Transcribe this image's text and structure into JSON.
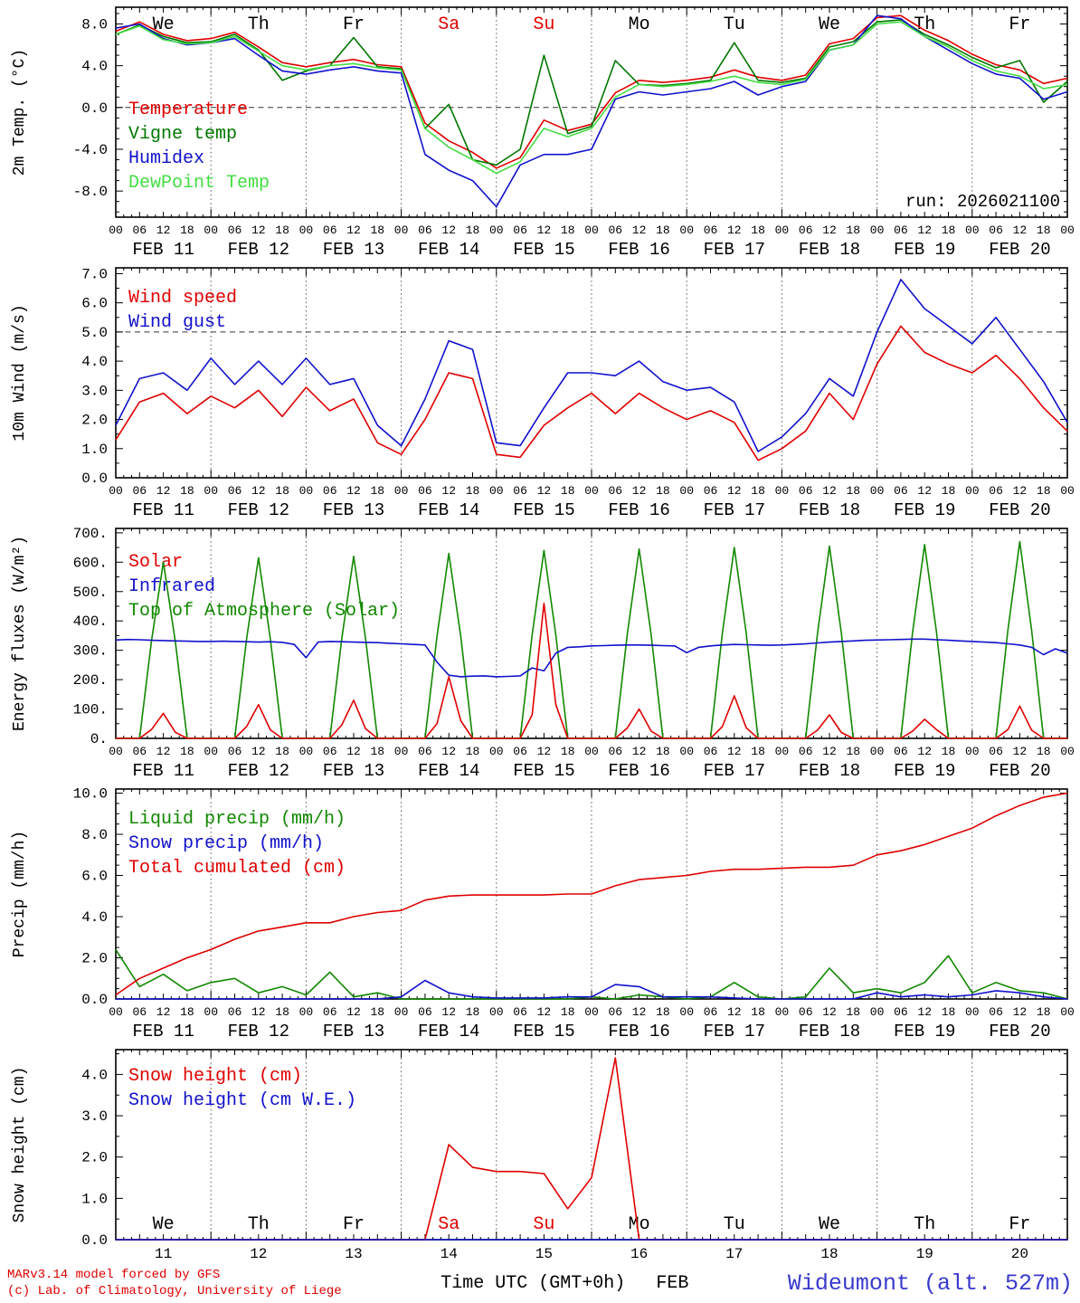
{
  "footer": {
    "credit_line1": "MARv3.14 model forced by GFS",
    "credit_line2": "(c) Lab. of Climatology, University of Liege",
    "xlabel": "Time UTC (GMT+0h)",
    "month": "FEB",
    "station": "Wideumont (alt. 527m)"
  },
  "chart_data": {
    "type": "line",
    "hours_total": 240,
    "dates": [
      "FEB 11",
      "FEB 12",
      "FEB 13",
      "FEB 14",
      "FEB 15",
      "FEB 16",
      "FEB 17",
      "FEB 18",
      "FEB 19",
      "FEB 20"
    ],
    "day_numbers": [
      "11",
      "12",
      "13",
      "14",
      "15",
      "16",
      "17",
      "18",
      "19",
      "20"
    ],
    "day_abbrevs": [
      "We",
      "Th",
      "Fr",
      "Sa",
      "Su",
      "Mo",
      "Tu",
      "We",
      "Th",
      "Fr"
    ],
    "weekend_indices": [
      3,
      4
    ],
    "run_label": "run: 2026021100",
    "panels": [
      {
        "id": "temp",
        "ylabel": "2m Temp. (°C)",
        "ylim": [
          -10.5,
          9.6
        ],
        "yticks": [
          8,
          4,
          0,
          -4,
          -8
        ],
        "ytick_labels": [
          "8.0",
          "4.0",
          "0.0",
          "-4.0",
          "-8.0"
        ],
        "yminor": 1,
        "dash_y": 0,
        "x_mode": "hours",
        "day_labels": "top",
        "note": "run: 2026021100",
        "legend_y": 118,
        "legend": [
          {
            "label": "Temperature",
            "color": "#e00000"
          },
          {
            "label": "Vigne temp",
            "color": "#007700"
          },
          {
            "label": "Humidex",
            "color": "#1111cc"
          },
          {
            "label": "DewPoint Temp",
            "color": "#44dd44"
          }
        ],
        "series": [
          {
            "name": "Temperature",
            "color": "#e00000",
            "step": 6,
            "values": [
              7.3,
              8.2,
              7.0,
              6.4,
              6.6,
              7.2,
              5.8,
              4.3,
              3.9,
              4.3,
              4.6,
              4.1,
              3.9,
              -1.5,
              -3.2,
              -4.3,
              -5.8,
              -4.8,
              -1.2,
              -2.2,
              -1.6,
              1.4,
              2.6,
              2.4,
              2.6,
              2.9,
              3.6,
              2.9,
              2.6,
              3.1,
              6.1,
              6.6,
              8.6,
              8.8,
              7.4,
              6.4,
              5.1,
              4.1,
              3.6,
              2.3,
              2.8
            ]
          },
          {
            "name": "Vigne temp",
            "color": "#007700",
            "step": 6,
            "values": [
              7.0,
              7.9,
              6.8,
              6.2,
              6.3,
              7.0,
              5.5,
              2.6,
              3.5,
              4.0,
              6.7,
              3.9,
              3.7,
              -2.0,
              0.3,
              -5.0,
              -5.5,
              -4.0,
              5.0,
              -2.5,
              -1.8,
              4.5,
              2.2,
              2.1,
              2.3,
              2.6,
              6.2,
              2.6,
              2.4,
              2.8,
              5.8,
              6.3,
              8.2,
              8.4,
              7.0,
              6.0,
              4.8,
              3.8,
              4.5,
              0.5,
              2.5
            ]
          },
          {
            "name": "Humidex",
            "color": "#1111cc",
            "step": 6,
            "values": [
              7.6,
              8.0,
              6.6,
              6.0,
              6.2,
              6.6,
              5.0,
              3.5,
              3.2,
              3.6,
              3.9,
              3.5,
              3.3,
              -4.5,
              -6.0,
              -7.0,
              -9.5,
              -5.5,
              -4.5,
              -4.5,
              -4.0,
              0.8,
              1.5,
              1.2,
              1.5,
              1.8,
              2.5,
              1.2,
              2.0,
              2.5,
              5.5,
              6.0,
              8.8,
              8.5,
              6.8,
              5.5,
              4.2,
              3.2,
              2.8,
              0.8,
              1.5
            ]
          },
          {
            "name": "DewPoint Temp",
            "color": "#44dd44",
            "step": 6,
            "values": [
              7.0,
              7.8,
              6.5,
              6.1,
              6.2,
              6.8,
              5.4,
              4.0,
              3.6,
              4.0,
              4.2,
              3.8,
              3.6,
              -2.0,
              -3.8,
              -5.0,
              -6.3,
              -5.2,
              -2.0,
              -2.8,
              -2.0,
              1.0,
              2.2,
              2.0,
              2.2,
              2.5,
              3.0,
              2.4,
              2.2,
              2.7,
              5.5,
              6.0,
              8.0,
              8.2,
              6.8,
              5.8,
              4.5,
              3.5,
              3.0,
              1.8,
              2.2
            ]
          }
        ]
      },
      {
        "id": "wind",
        "ylabel": "10m Wind (m/s)",
        "ylim": [
          0,
          7.2
        ],
        "yticks": [
          7,
          6,
          5,
          4,
          3,
          2,
          1,
          0
        ],
        "ytick_labels": [
          "7.0",
          "6.0",
          "5.0",
          "4.0",
          "3.0",
          "2.0",
          "1.0",
          "0.0"
        ],
        "yminor": 0.5,
        "dash_y": 5,
        "x_mode": "hours",
        "legend_y": 38,
        "legend": [
          {
            "label": "Wind speed",
            "color": "#e00000"
          },
          {
            "label": "Wind gust",
            "color": "#1111cc"
          }
        ],
        "series": [
          {
            "name": "Wind speed",
            "color": "#e00000",
            "step": 6,
            "values": [
              1.3,
              2.6,
              2.9,
              2.2,
              2.8,
              2.4,
              3.0,
              2.1,
              3.1,
              2.3,
              2.7,
              1.2,
              0.8,
              2.0,
              3.6,
              3.4,
              0.8,
              0.7,
              1.8,
              2.4,
              2.9,
              2.2,
              2.9,
              2.4,
              2.0,
              2.3,
              1.9,
              0.6,
              1.0,
              1.6,
              2.9,
              2.0,
              3.9,
              5.2,
              4.3,
              3.9,
              3.6,
              4.2,
              3.4,
              2.4,
              1.6
            ]
          },
          {
            "name": "Wind gust",
            "color": "#1111cc",
            "step": 6,
            "values": [
              1.8,
              3.4,
              3.6,
              3.0,
              4.1,
              3.2,
              4.0,
              3.2,
              4.1,
              3.2,
              3.4,
              1.8,
              1.1,
              2.7,
              4.7,
              4.4,
              1.2,
              1.1,
              2.4,
              3.6,
              3.6,
              3.5,
              4.0,
              3.3,
              3.0,
              3.1,
              2.6,
              0.9,
              1.4,
              2.2,
              3.4,
              2.8,
              5.0,
              6.8,
              5.8,
              5.2,
              4.6,
              5.5,
              4.4,
              3.3,
              1.9
            ]
          }
        ]
      },
      {
        "id": "flux",
        "ylabel": "Energy fluxes (W/m²)",
        "ylim": [
          0,
          715
        ],
        "yticks": [
          700,
          600,
          500,
          400,
          300,
          200,
          100,
          0
        ],
        "ytick_labels": [
          "700.",
          "600.",
          "500.",
          "400.",
          "300.",
          "200.",
          "100.",
          "0."
        ],
        "yminor": 50,
        "x_mode": "hours",
        "legend_y": 42,
        "legend": [
          {
            "label": "Solar",
            "color": "#e00000"
          },
          {
            "label": "Infrared",
            "color": "#1111cc"
          },
          {
            "label": "Top of Atmosphere (Solar)",
            "color": "#118800"
          }
        ],
        "series": [
          {
            "name": "Top of Atmosphere (Solar)",
            "color": "#118800",
            "step": 3,
            "values": [
              0,
              0,
              0,
              330,
              600,
              330,
              0,
              0,
              0,
              0,
              0,
              338,
              615,
              338,
              0,
              0,
              0,
              0,
              0,
              341,
              620,
              341,
              0,
              0,
              0,
              0,
              0,
              347,
              630,
              347,
              0,
              0,
              0,
              0,
              0,
              352,
              640,
              352,
              0,
              0,
              0,
              0,
              0,
              355,
              645,
              355,
              0,
              0,
              0,
              0,
              0,
              358,
              650,
              358,
              0,
              0,
              0,
              0,
              0,
              360,
              655,
              360,
              0,
              0,
              0,
              0,
              0,
              363,
              660,
              363,
              0,
              0,
              0,
              0,
              0,
              369,
              670,
              369,
              0,
              0,
              0
            ]
          },
          {
            "name": "Infrared",
            "color": "#1111cc",
            "step": 3,
            "values": [
              335,
              337,
              336,
              334,
              333,
              332,
              331,
              330,
              330,
              331,
              330,
              329,
              328,
              329,
              327,
              320,
              275,
              328,
              330,
              329,
              328,
              327,
              326,
              324,
              322,
              320,
              318,
              260,
              215,
              210,
              212,
              213,
              210,
              211,
              213,
              240,
              230,
              290,
              310,
              312,
              315,
              316,
              317,
              318,
              318,
              317,
              316,
              315,
              292,
              310,
              315,
              318,
              320,
              319,
              318,
              317,
              318,
              320,
              322,
              325,
              328,
              330,
              332,
              334,
              335,
              336,
              337,
              338,
              338,
              336,
              334,
              332,
              330,
              328,
              326,
              322,
              318,
              310,
              285,
              305,
              290
            ]
          },
          {
            "name": "Solar",
            "color": "#e00000",
            "step": 3,
            "values": [
              0,
              0,
              0,
              30,
              85,
              21,
              0,
              0,
              0,
              0,
              0,
              40,
              115,
              29,
              0,
              0,
              0,
              0,
              0,
              46,
              130,
              33,
              0,
              0,
              0,
              0,
              0,
              50,
              210,
              60,
              0,
              0,
              0,
              0,
              0,
              80,
              460,
              115,
              0,
              0,
              0,
              0,
              0,
              35,
              100,
              25,
              0,
              0,
              0,
              0,
              0,
              40,
              145,
              36,
              0,
              0,
              0,
              0,
              0,
              28,
              80,
              20,
              0,
              0,
              0,
              0,
              0,
              25,
              65,
              30,
              0,
              0,
              0,
              0,
              0,
              30,
              110,
              28,
              0,
              0,
              0
            ]
          }
        ]
      },
      {
        "id": "precip",
        "ylabel": "Precip (mm/h)",
        "ylim": [
          0,
          10.2
        ],
        "yticks": [
          10,
          8,
          6,
          4,
          2,
          0
        ],
        "ytick_labels": [
          "10.0",
          "8.0",
          "6.0",
          "4.0",
          "2.0",
          "0.0"
        ],
        "yminor": 0.5,
        "x_mode": "hours",
        "legend_y": 38,
        "legend": [
          {
            "label": "Liquid precip (mm/h)",
            "color": "#118800"
          },
          {
            "label": "Snow precip (mm/h)",
            "color": "#1111cc"
          },
          {
            "label": "Total cumulated (cm)",
            "color": "#e00000"
          }
        ],
        "series": [
          {
            "name": "Liquid precip (mm/h)",
            "color": "#118800",
            "step": 6,
            "values": [
              2.4,
              0.6,
              1.2,
              0.4,
              0.8,
              1.0,
              0.3,
              0.6,
              0.2,
              1.3,
              0.1,
              0.3,
              0.0,
              0.0,
              0.0,
              0.0,
              0.0,
              0.0,
              0.0,
              0.0,
              0.1,
              0.0,
              0.2,
              0.1,
              0.0,
              0.1,
              0.8,
              0.1,
              0.0,
              0.1,
              1.5,
              0.3,
              0.5,
              0.3,
              0.8,
              2.1,
              0.3,
              0.8,
              0.4,
              0.3,
              0.0
            ]
          },
          {
            "name": "Snow precip (mm/h)",
            "color": "#1111cc",
            "step": 6,
            "values": [
              0,
              0,
              0,
              0,
              0,
              0,
              0,
              0,
              0,
              0,
              0,
              0,
              0.1,
              0.9,
              0.3,
              0.1,
              0.05,
              0.05,
              0.05,
              0.1,
              0.1,
              0.7,
              0.6,
              0.1,
              0.1,
              0.1,
              0.05,
              0,
              0,
              0,
              0,
              0,
              0.3,
              0.1,
              0.2,
              0.1,
              0.2,
              0.4,
              0.3,
              0.1,
              0
            ]
          },
          {
            "name": "Total cumulated (cm)",
            "color": "#e00000",
            "step": 6,
            "values": [
              0.2,
              1.0,
              1.5,
              2.0,
              2.4,
              2.9,
              3.3,
              3.5,
              3.7,
              3.7,
              4.0,
              4.2,
              4.3,
              4.8,
              5.0,
              5.05,
              5.05,
              5.05,
              5.05,
              5.1,
              5.1,
              5.5,
              5.8,
              5.9,
              6.0,
              6.2,
              6.3,
              6.3,
              6.35,
              6.4,
              6.4,
              6.5,
              7.0,
              7.2,
              7.5,
              7.9,
              8.3,
              8.9,
              9.4,
              9.8,
              10.0
            ]
          }
        ]
      },
      {
        "id": "snow",
        "ylabel": "Snow height (cm)",
        "ylim": [
          0,
          4.6
        ],
        "yticks": [
          4,
          3,
          2,
          1,
          0
        ],
        "ytick_labels": [
          "4.0",
          "3.0",
          "2.0",
          "1.0",
          "0.0"
        ],
        "yminor": 0.5,
        "x_mode": "days",
        "day_labels": "bottom",
        "legend_y": 34,
        "legend": [
          {
            "label": "Snow height (cm)",
            "color": "#e00000"
          },
          {
            "label": "Snow height (cm W.E.)",
            "color": "#1111cc"
          }
        ],
        "series": [
          {
            "name": "Snow height (cm)",
            "color": "#e00000",
            "step": 6,
            "values": [
              0,
              0,
              0,
              0,
              0,
              0,
              0,
              0,
              0,
              0,
              0,
              0,
              0,
              0,
              2.3,
              1.75,
              1.65,
              1.65,
              1.6,
              0.75,
              1.5,
              4.4,
              0,
              0,
              0,
              0,
              0,
              0,
              0,
              0,
              0,
              0,
              0,
              0,
              0,
              0,
              0,
              0,
              0,
              0,
              0
            ]
          },
          {
            "name": "Snow height (cm W.E.)",
            "color": "#1111cc",
            "step": 6,
            "values": [
              0,
              0,
              0,
              0,
              0,
              0,
              0,
              0,
              0,
              0,
              0,
              0,
              0,
              0,
              0,
              0,
              0,
              0,
              0,
              0,
              0,
              0,
              0,
              0,
              0,
              0,
              0,
              0,
              0,
              0,
              0,
              0,
              0,
              0,
              0,
              0,
              0,
              0,
              0,
              0,
              0
            ]
          }
        ]
      }
    ]
  }
}
